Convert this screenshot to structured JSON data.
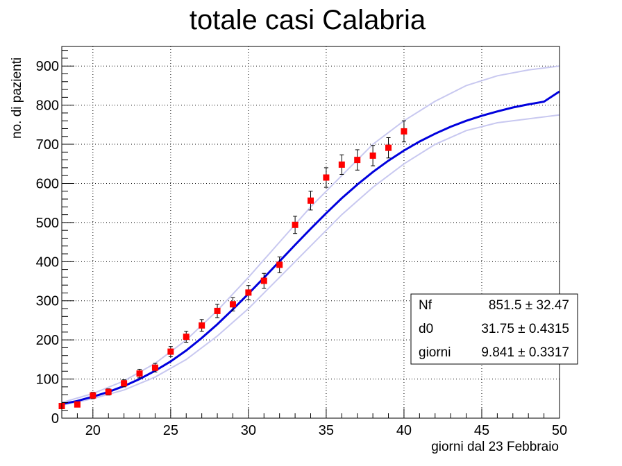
{
  "chart_data": {
    "type": "scatter",
    "title": "totale casi Calabria",
    "xlabel": "giorni dal 23 Febbraio",
    "ylabel": "no. di pazienti",
    "xlim": [
      18,
      50
    ],
    "ylim": [
      0,
      950
    ],
    "x_ticks": [
      20,
      25,
      30,
      35,
      40,
      45,
      50
    ],
    "y_ticks": [
      0,
      100,
      200,
      300,
      400,
      500,
      600,
      700,
      800,
      900
    ],
    "grid": true,
    "colors": {
      "data": "#ff0000",
      "fit": "#0000dd",
      "band": "#c8c8f0",
      "error": "#000000"
    },
    "series": [
      {
        "type": "scatter",
        "x": [
          18,
          19,
          20,
          21,
          22,
          23,
          24,
          25,
          26,
          27,
          28,
          29,
          30,
          31,
          32,
          33,
          34,
          35,
          36,
          37,
          38,
          39,
          40
        ],
        "y": [
          31,
          35,
          58,
          67,
          89,
          114,
          129,
          170,
          208,
          237,
          274,
          291,
          321,
          351,
          392,
          494,
          556,
          615,
          648,
          660,
          671,
          691,
          733
        ],
        "yerr": [
          6,
          6,
          8,
          8,
          9,
          11,
          11,
          13,
          14,
          15,
          17,
          17,
          18,
          19,
          20,
          22,
          24,
          25,
          25,
          26,
          26,
          26,
          27
        ]
      },
      {
        "type": "line",
        "role": "fit",
        "x": [
          18,
          19,
          20,
          21,
          22,
          23,
          24,
          25,
          26,
          27,
          28,
          29,
          30,
          31,
          32,
          33,
          34,
          35,
          36,
          37,
          38,
          39,
          40,
          41,
          42,
          43,
          44,
          45,
          46,
          47,
          48,
          49,
          50
        ],
        "y": [
          36,
          44,
          55,
          67,
          82,
          100,
          121,
          145,
          173,
          205,
          240,
          278,
          318,
          359,
          401,
          443,
          484,
          524,
          562,
          597,
          629,
          658,
          684,
          707,
          727,
          745,
          760,
          773,
          784,
          794,
          802,
          809,
          835
        ]
      },
      {
        "type": "line",
        "role": "upper-band",
        "x": [
          18,
          20,
          22,
          24,
          26,
          28,
          30,
          32,
          34,
          36,
          38,
          40,
          42,
          44,
          46,
          48,
          50
        ],
        "y": [
          40,
          63,
          95,
          140,
          200,
          275,
          360,
          450,
          540,
          620,
          700,
          760,
          810,
          850,
          875,
          890,
          900
        ]
      },
      {
        "type": "line",
        "role": "lower-band",
        "x": [
          18,
          20,
          22,
          24,
          26,
          28,
          30,
          32,
          34,
          36,
          38,
          40,
          42,
          44,
          46,
          48,
          50
        ],
        "y": [
          33,
          50,
          72,
          105,
          150,
          210,
          280,
          360,
          440,
          520,
          590,
          650,
          700,
          735,
          755,
          765,
          775
        ]
      }
    ],
    "stats_box": [
      {
        "name": "Nf",
        "value": "851.5 ± 32.47"
      },
      {
        "name": "d0",
        "value": "31.75 ± 0.4315"
      },
      {
        "name": "giorni",
        "value": "9.841 ± 0.3317"
      }
    ]
  }
}
